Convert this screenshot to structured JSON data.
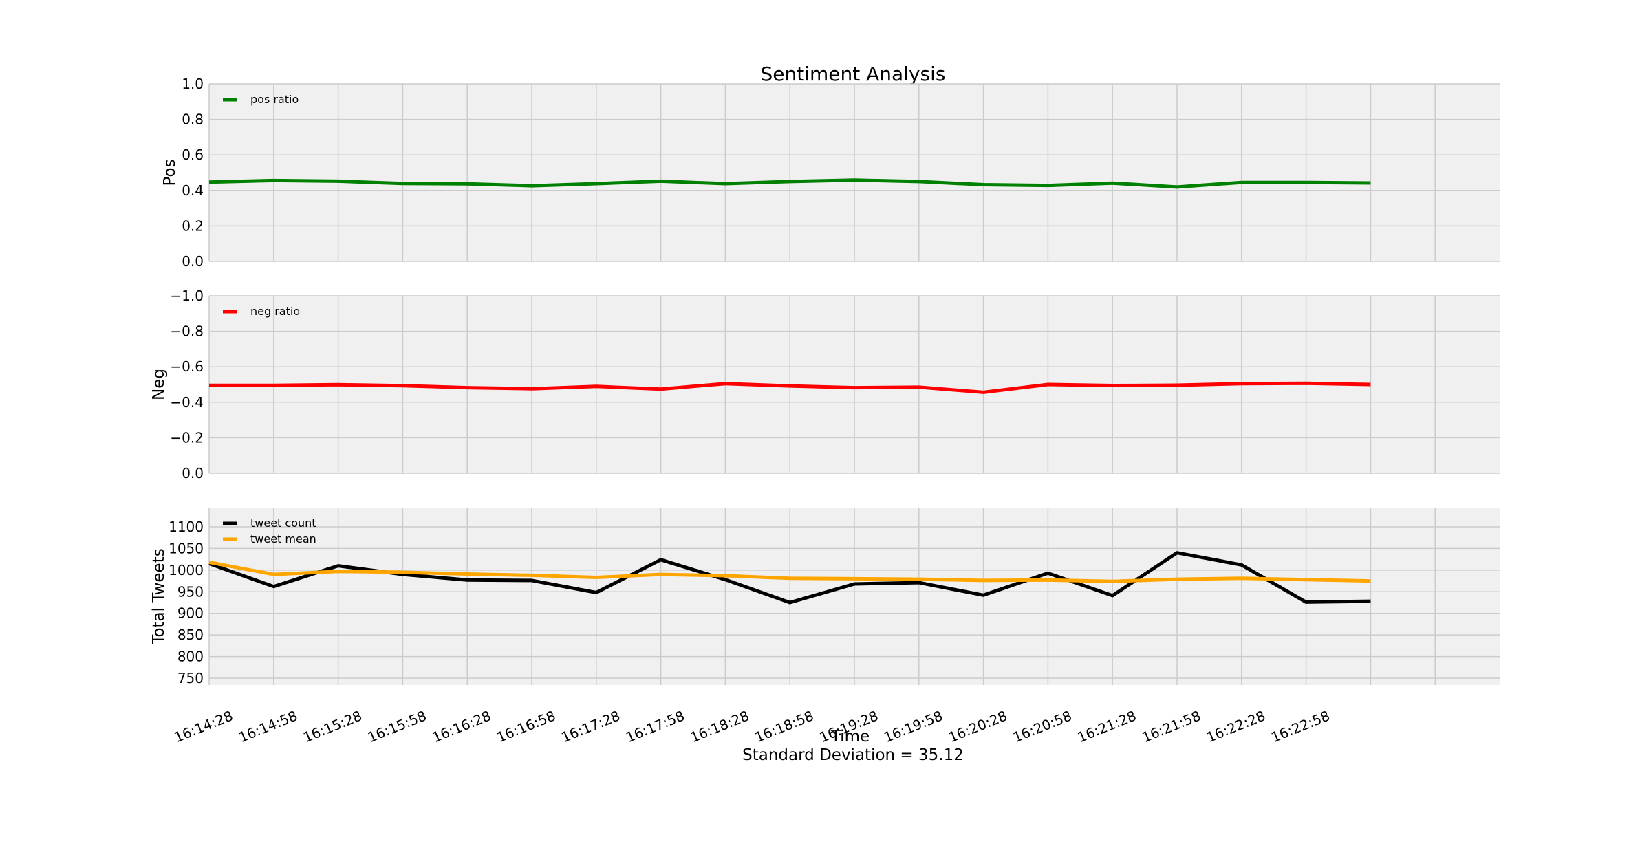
{
  "chart_data": {
    "title": "Sentiment Analysis",
    "xlabel": "Time",
    "footer": "Standard Deviation = 35.12",
    "x_tick_labels": [
      "16:14:28",
      "16:14:58",
      "16:15:28",
      "16:15:58",
      "16:16:28",
      "16:16:58",
      "16:17:28",
      "16:17:58",
      "16:18:28",
      "16:18:58",
      "16:19:28",
      "16:19:58",
      "16:20:28",
      "16:20:58",
      "16:21:28",
      "16:21:58",
      "16:22:28",
      "16:22:58"
    ],
    "x_range": [
      0,
      20
    ],
    "grid": true,
    "panels": [
      {
        "type": "line",
        "ylabel": "Pos",
        "ylim": [
          0,
          1
        ],
        "y_ticks": [
          0.0,
          0.2,
          0.4,
          0.6,
          0.8,
          1.0
        ],
        "y_tick_labels": [
          "0.0",
          "0.2",
          "0.4",
          "0.6",
          "0.8",
          "1.0"
        ],
        "legend": "top-left",
        "series": [
          {
            "name": "pos ratio",
            "color": "#008000",
            "values": [
              0.447,
              0.456,
              0.452,
              0.439,
              0.437,
              0.426,
              0.438,
              0.452,
              0.438,
              0.45,
              0.458,
              0.45,
              0.432,
              0.428,
              0.441,
              0.419,
              0.445,
              0.445,
              0.442
            ]
          }
        ]
      },
      {
        "type": "line",
        "ylabel": "Neg",
        "ylim": [
          -1,
          0
        ],
        "inverted": true,
        "y_ticks": [
          0.0,
          -0.2,
          -0.4,
          -0.6,
          -0.8,
          -1.0
        ],
        "y_tick_labels": [
          "0.0",
          "−0.2",
          "−0.4",
          "−0.6",
          "−0.8",
          "−1.0"
        ],
        "legend": "top-left",
        "series": [
          {
            "name": "neg ratio",
            "color": "#ff0000",
            "values": [
              -0.495,
              -0.495,
              -0.499,
              -0.493,
              -0.482,
              -0.476,
              -0.489,
              -0.474,
              -0.505,
              -0.492,
              -0.482,
              -0.485,
              -0.456,
              -0.5,
              -0.494,
              -0.496,
              -0.505,
              -0.507,
              -0.5
            ]
          }
        ]
      },
      {
        "type": "line",
        "ylabel": "Total Tweets",
        "ylim": [
          740,
          1150
        ],
        "y_ticks": [
          750,
          800,
          850,
          900,
          950,
          1000,
          1050,
          1100
        ],
        "y_tick_labels": [
          "750",
          "800",
          "850",
          "900",
          "950",
          "1000",
          "1050",
          "1100"
        ],
        "legend": "top-left",
        "series": [
          {
            "name": "tweet count",
            "color": "#000000",
            "values": [
              1015,
              962,
              1010,
              990,
              977,
              976,
              948,
              1024,
              978,
              925,
              968,
              971,
              942,
              993,
              941,
              1040,
              1012,
              926,
              928
            ]
          },
          {
            "name": "tweet mean",
            "color": "#ffa500",
            "values": [
              1018,
              990,
              997,
              995,
              991,
              988,
              983,
              990,
              987,
              981,
              980,
              979,
              976,
              977,
              974,
              979,
              981,
              978,
              975
            ]
          }
        ]
      }
    ]
  }
}
